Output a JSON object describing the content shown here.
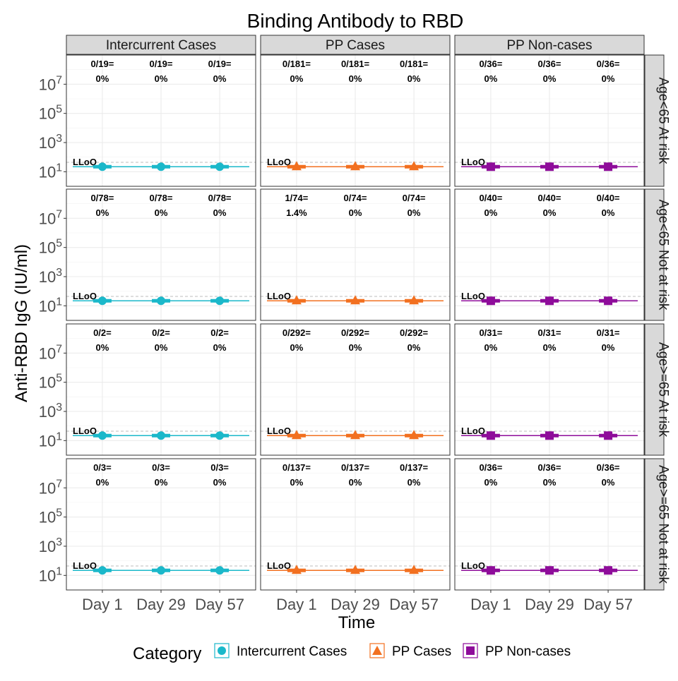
{
  "chart_data": {
    "type": "scatter",
    "title": "Binding Antibody to RBD",
    "xlabel": "Time",
    "ylabel": "Anti-RBD IgG (IU/ml)",
    "y_scale": "log10",
    "ylim": [
      1,
      1000000000
    ],
    "y_ticks": [
      "10^1",
      "10^3",
      "10^5",
      "10^7"
    ],
    "grid": true,
    "x_tick_labels": [
      "Day 1",
      "Day 29",
      "Day 57"
    ],
    "lloq_label": "LLoQ",
    "lloq_value": 44,
    "column_labels": [
      "Intercurrent Cases",
      "PP Cases",
      "PP Non-cases"
    ],
    "row_labels": [
      "Age<65 At risk",
      "Age<65 Not at risk",
      "Age>=65 At risk",
      "Age>=65 Not at risk"
    ],
    "legend": {
      "title": "Category",
      "position": "bottom",
      "items": [
        "Intercurrent Cases",
        "PP Cases",
        "PP Non-cases"
      ]
    },
    "colors": {
      "Intercurrent Cases": "#1BB8CA",
      "PP Cases": "#F27020",
      "PP Non-cases": "#8E0C9A"
    },
    "markers": {
      "Intercurrent Cases": "circle",
      "PP Cases": "triangle",
      "PP Non-cases": "square"
    },
    "series_median_value": 22,
    "panels": [
      {
        "row": "Age<65 At risk",
        "col": "Intercurrent Cases",
        "counts": [
          "0/19=",
          "0/19=",
          "0/19="
        ],
        "percents": [
          "0%",
          "0%",
          "0%"
        ]
      },
      {
        "row": "Age<65 At risk",
        "col": "PP Cases",
        "counts": [
          "0/181=",
          "0/181=",
          "0/181="
        ],
        "percents": [
          "0%",
          "0%",
          "0%"
        ]
      },
      {
        "row": "Age<65 At risk",
        "col": "PP Non-cases",
        "counts": [
          "0/36=",
          "0/36=",
          "0/36="
        ],
        "percents": [
          "0%",
          "0%",
          "0%"
        ]
      },
      {
        "row": "Age<65 Not at risk",
        "col": "Intercurrent Cases",
        "counts": [
          "0/78=",
          "0/78=",
          "0/78="
        ],
        "percents": [
          "0%",
          "0%",
          "0%"
        ]
      },
      {
        "row": "Age<65 Not at risk",
        "col": "PP Cases",
        "counts": [
          "1/74=",
          "0/74=",
          "0/74="
        ],
        "percents": [
          "1.4%",
          "0%",
          "0%"
        ]
      },
      {
        "row": "Age<65 Not at risk",
        "col": "PP Non-cases",
        "counts": [
          "0/40=",
          "0/40=",
          "0/40="
        ],
        "percents": [
          "0%",
          "0%",
          "0%"
        ]
      },
      {
        "row": "Age>=65 At risk",
        "col": "Intercurrent Cases",
        "counts": [
          "0/2=",
          "0/2=",
          "0/2="
        ],
        "percents": [
          "0%",
          "0%",
          "0%"
        ]
      },
      {
        "row": "Age>=65 At risk",
        "col": "PP Cases",
        "counts": [
          "0/292=",
          "0/292=",
          "0/292="
        ],
        "percents": [
          "0%",
          "0%",
          "0%"
        ]
      },
      {
        "row": "Age>=65 At risk",
        "col": "PP Non-cases",
        "counts": [
          "0/31=",
          "0/31=",
          "0/31="
        ],
        "percents": [
          "0%",
          "0%",
          "0%"
        ]
      },
      {
        "row": "Age>=65 Not at risk",
        "col": "Intercurrent Cases",
        "counts": [
          "0/3=",
          "0/3=",
          "0/3="
        ],
        "percents": [
          "0%",
          "0%",
          "0%"
        ]
      },
      {
        "row": "Age>=65 Not at risk",
        "col": "PP Cases",
        "counts": [
          "0/137=",
          "0/137=",
          "0/137="
        ],
        "percents": [
          "0%",
          "0%",
          "0%"
        ]
      },
      {
        "row": "Age>=65 Not at risk",
        "col": "PP Non-cases",
        "counts": [
          "0/36=",
          "0/36=",
          "0/36="
        ],
        "percents": [
          "0%",
          "0%",
          "0%"
        ]
      }
    ]
  }
}
